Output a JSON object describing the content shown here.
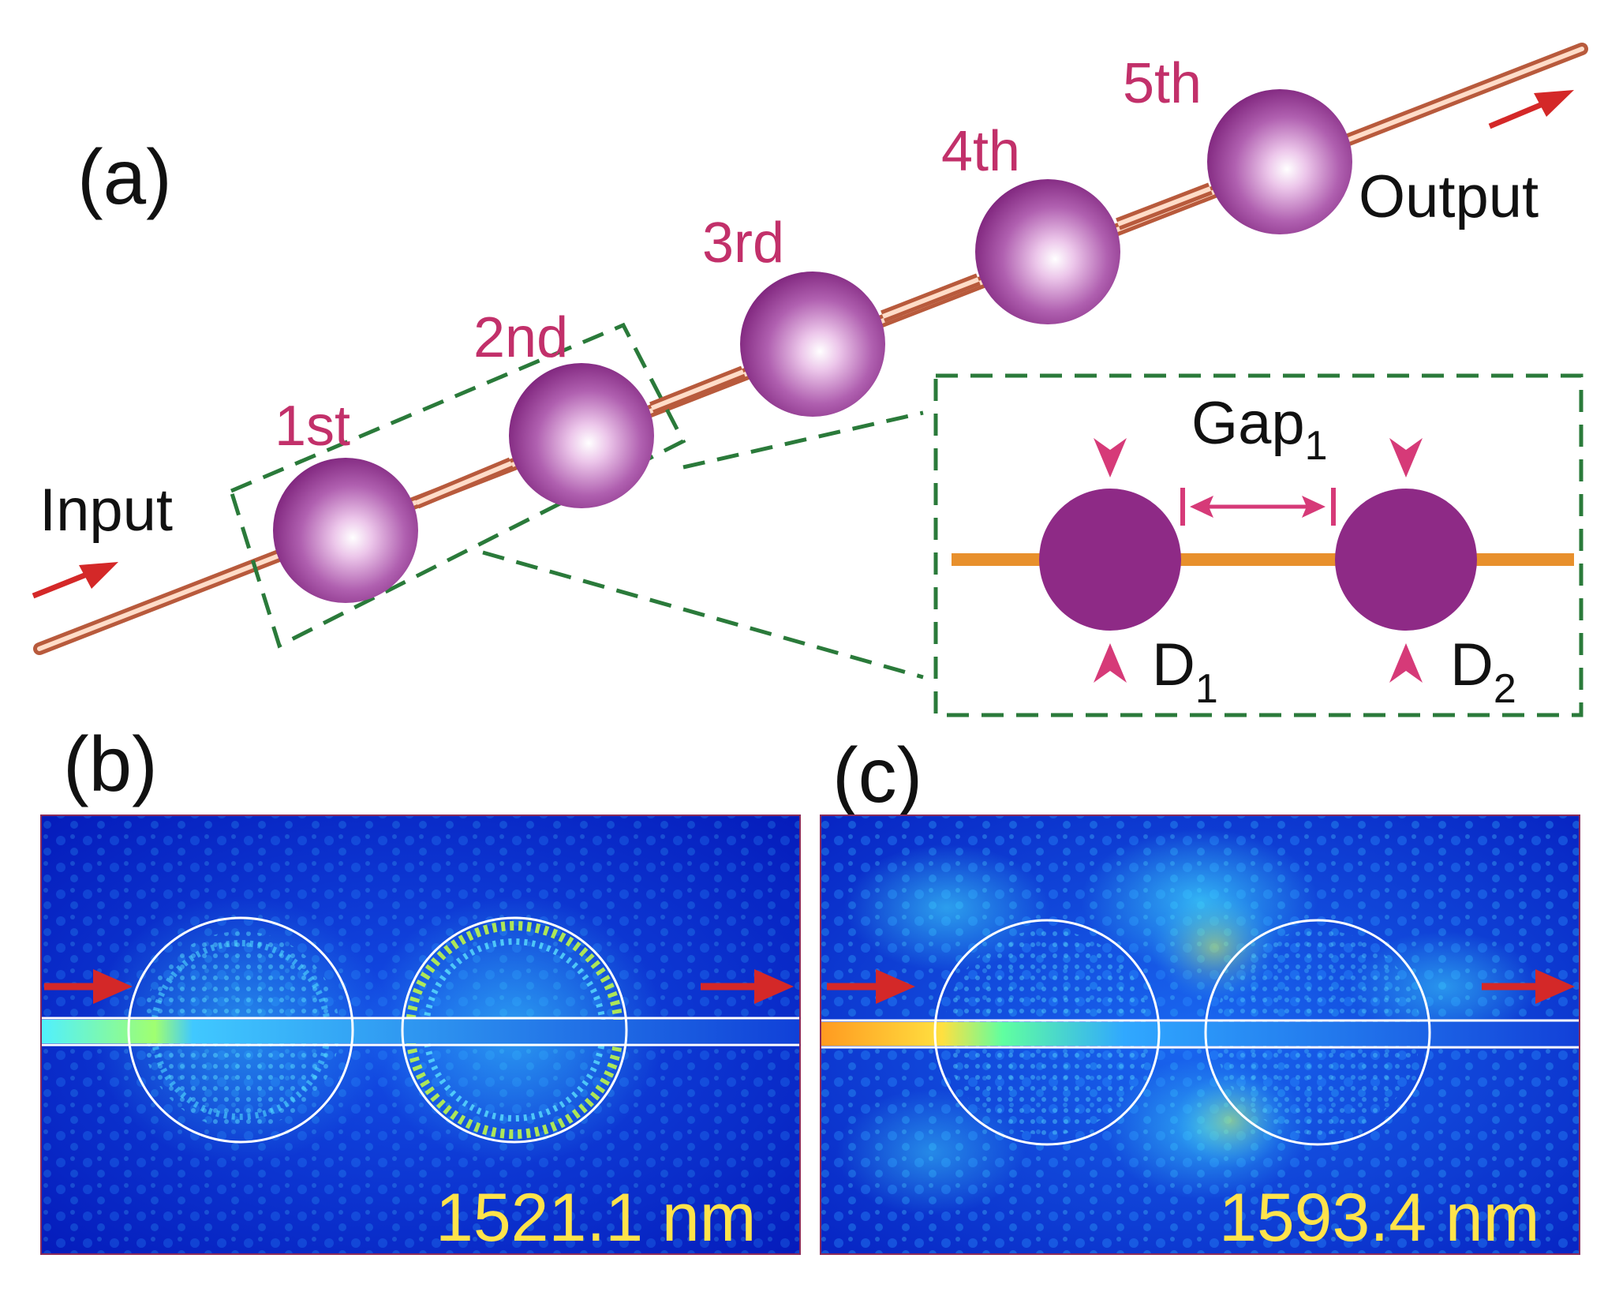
{
  "panels": {
    "a": {
      "label": "(a)"
    },
    "b": {
      "label": "(b)",
      "wavelength": "1521.1 nm"
    },
    "c": {
      "label": "(c)",
      "wavelength": "1593.4 nm"
    }
  },
  "chain": {
    "input_label": "Input",
    "output_label": "Output",
    "spheres": [
      {
        "label": "1st"
      },
      {
        "label": "2nd"
      },
      {
        "label": "3rd"
      },
      {
        "label": "4th"
      },
      {
        "label": "5th"
      }
    ]
  },
  "inset": {
    "gap_label": "Gap",
    "gap_sub": "1",
    "d1_label": "D",
    "d1_sub": "1",
    "d2_label": "D",
    "d2_sub": "2"
  },
  "colors": {
    "sphere": "#8e2a86",
    "fiber": "#e9a07c",
    "fiber_inset": "#e8902c",
    "arrow": "#d42828",
    "marker": "#d63a78",
    "dashed": "#2a7a3a",
    "field_bg": "#0a2fd0",
    "wavelength_text": "#ffe34a"
  }
}
